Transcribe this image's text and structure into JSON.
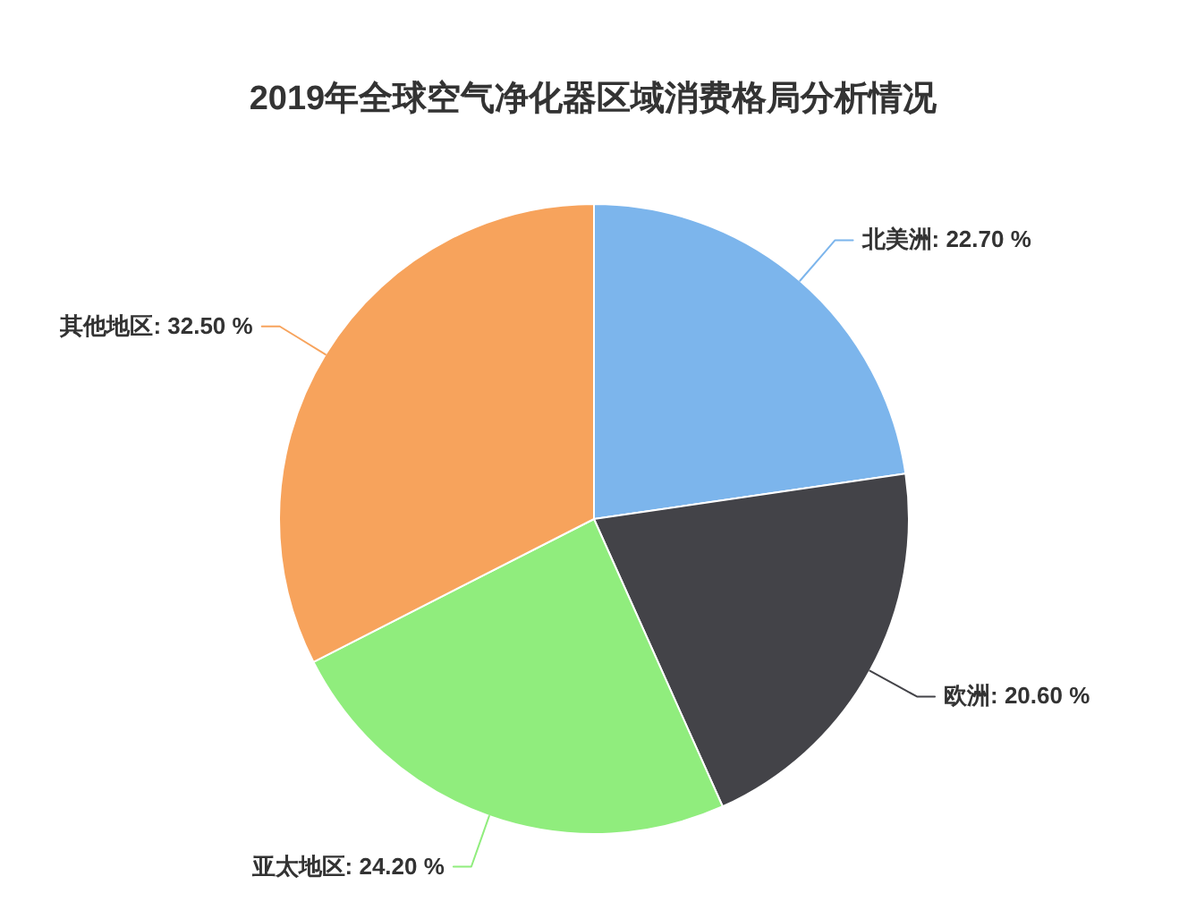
{
  "chart_data": {
    "type": "pie",
    "title": "2019年全球空气净化器区域消费格局分析情况",
    "categories": [
      "北美洲",
      "欧洲",
      "亚太地区",
      "其他地区"
    ],
    "values": [
      22.7,
      20.6,
      24.2,
      32.5
    ],
    "colors": [
      "#7cb5ec",
      "#434348",
      "#90ed7d",
      "#f7a35c"
    ],
    "value_labels": [
      "22.70 %",
      "20.60 %",
      "24.20 %",
      "32.50 %"
    ],
    "legend": false
  }
}
